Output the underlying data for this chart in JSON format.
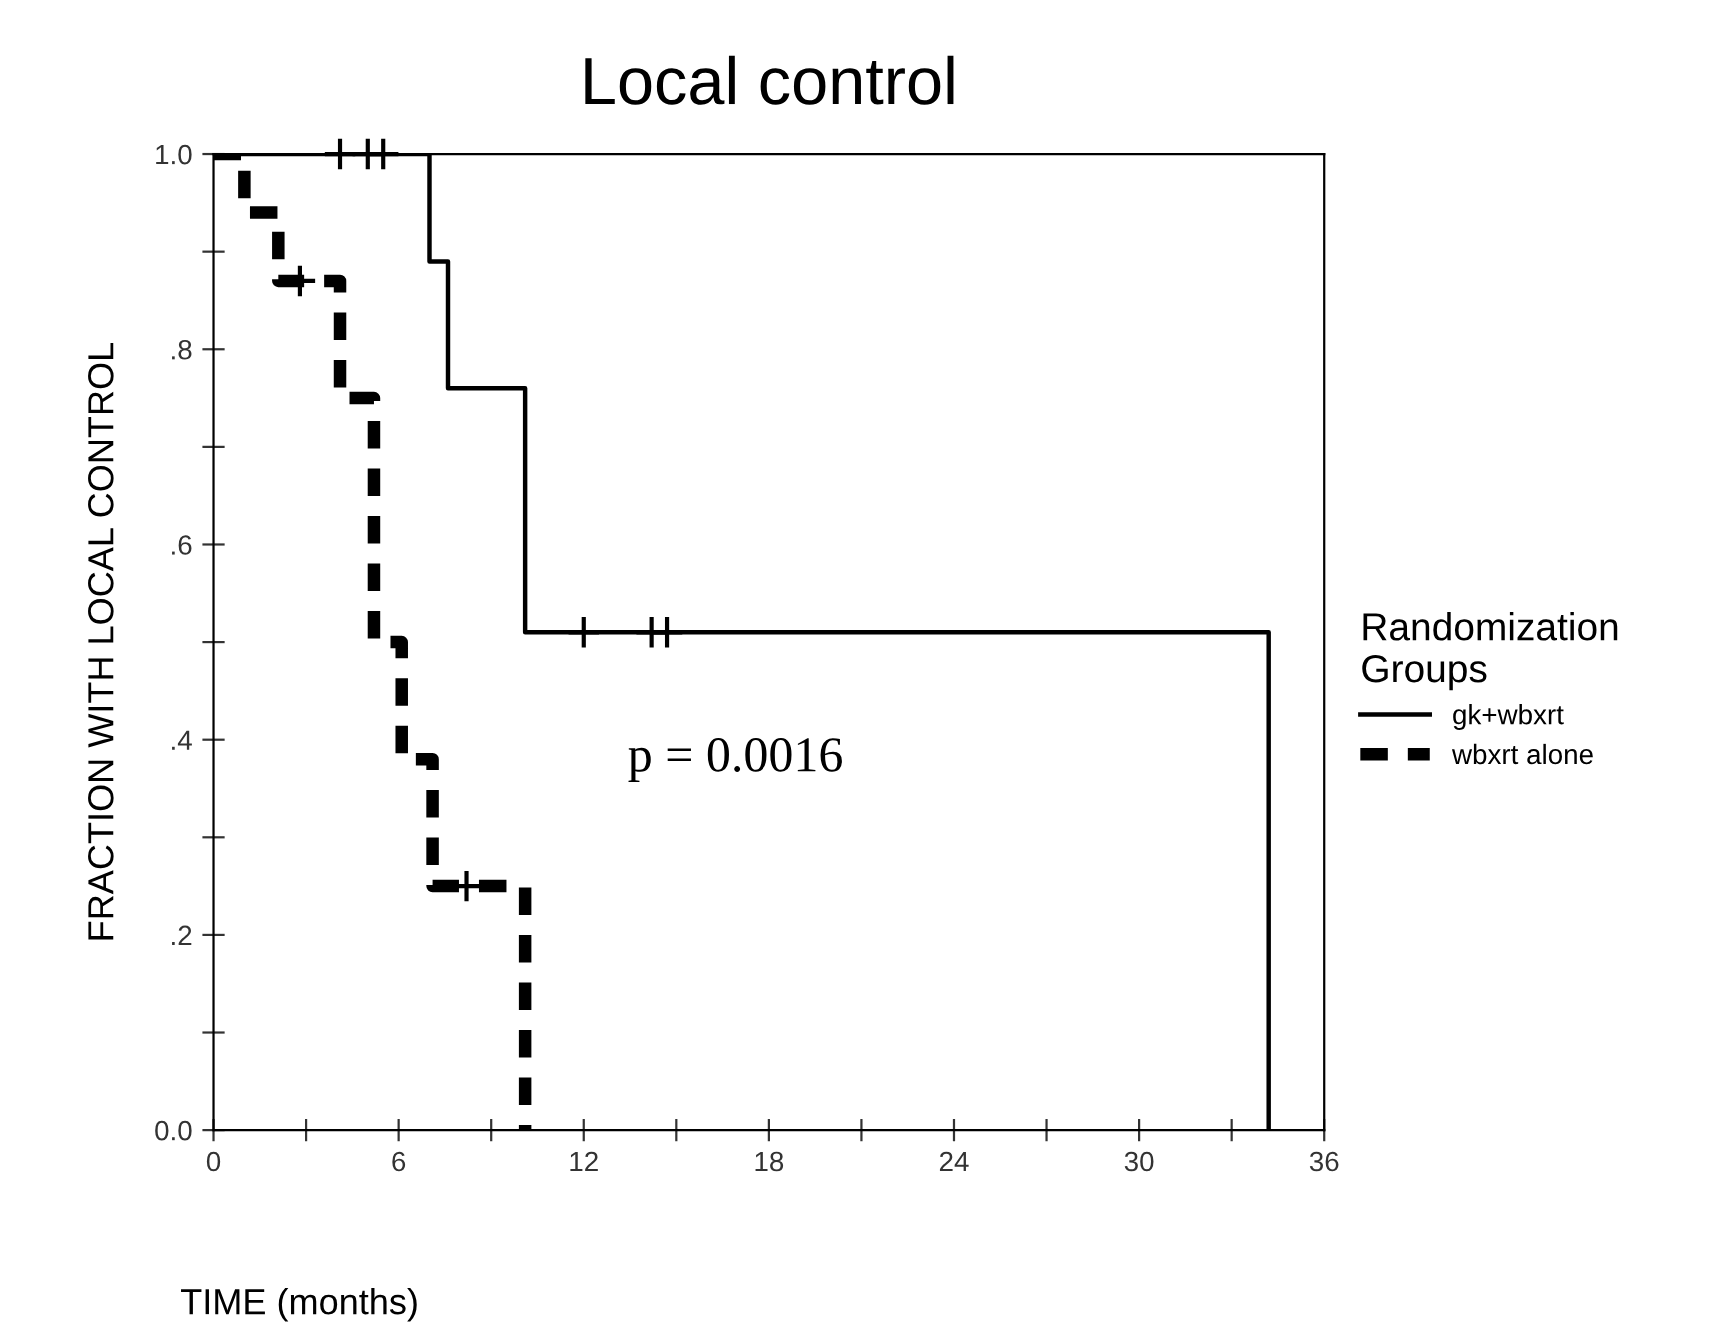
{
  "chart_data": {
    "type": "step",
    "title": "Local control",
    "xlabel": "TIME (months)",
    "ylabel": "FRACTION WITH LOCAL CONTROL",
    "legend_title": "Randomization\nGroups",
    "series": [
      {
        "name": "gk+wbxrt",
        "color": "#000000",
        "line_style": "solid",
        "x": [
          0,
          7.0,
          7.6,
          10.1,
          34.2
        ],
        "values": [
          1.0,
          0.89,
          0.76,
          0.51,
          0.0
        ]
      },
      {
        "name": "wbxrt alone",
        "color": "#000000",
        "line_style": "dashed",
        "x": [
          0,
          1.0,
          2.1,
          4.1,
          5.2,
          6.1,
          7.1,
          10.1
        ],
        "values": [
          1.0,
          0.94,
          0.87,
          0.75,
          0.5,
          0.38,
          0.25,
          0.0
        ]
      },
      {
        "type": "scatter",
        "color": "#000000",
        "marker": "cross",
        "x": [
          4.1,
          5.0,
          5.5,
          12.0,
          14.2,
          14.7,
          2.8,
          8.2
        ],
        "values": [
          1.0,
          1.0,
          1.0,
          0.51,
          0.51,
          0.51,
          0.87,
          0.25
        ]
      }
    ],
    "xlim": [
      0,
      36
    ],
    "xticks": [
      0,
      {
        "value": 3,
        "label": null
      },
      6,
      {
        "value": 9,
        "label": null
      },
      12,
      {
        "value": 15,
        "label": null
      },
      18,
      {
        "value": 21,
        "label": null
      },
      24,
      {
        "value": 27,
        "label": null
      },
      30,
      {
        "value": 33,
        "label": null
      },
      36
    ],
    "ylim": [
      0,
      1.0
    ],
    "yticks": [
      {
        "value": 0,
        "label": "0.0"
      },
      {
        "value": 0.1,
        "label": null
      },
      {
        "value": 0.2,
        "label": ".2"
      },
      {
        "value": 0.3,
        "label": null
      },
      {
        "value": 0.4,
        "label": ".4"
      },
      {
        "value": 0.5,
        "label": null
      },
      {
        "value": 0.6,
        "label": ".6"
      },
      {
        "value": 0.7,
        "label": null
      },
      {
        "value": 0.8,
        "label": ".8"
      },
      {
        "value": 0.9,
        "label": null
      },
      {
        "value": 1.0,
        "label": "1.0"
      }
    ],
    "annotations": [
      "p = 0.0016"
    ],
    "legend": "right",
    "grid": false
  }
}
